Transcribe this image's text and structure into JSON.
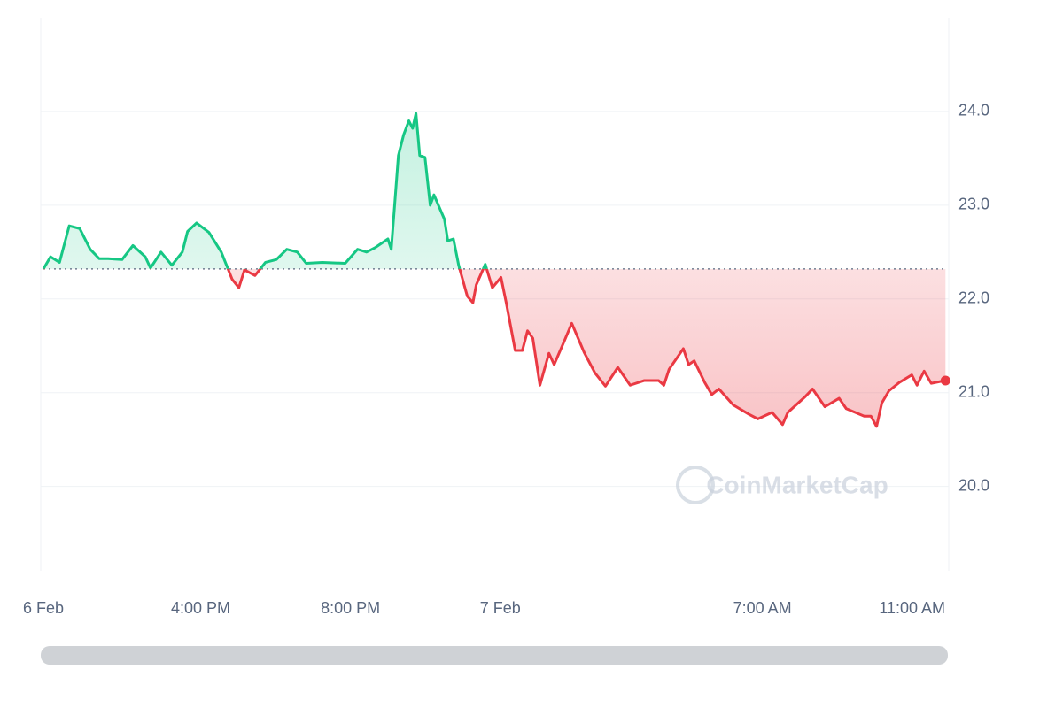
{
  "chart_data": {
    "type": "line",
    "watermark": "CoinMarketCap",
    "baseline": 22.32,
    "color_up": "#16c784",
    "color_down": "#ea3943",
    "x": [
      11.8,
      11.99,
      12.23,
      12.49,
      12.77,
      13.05,
      13.29,
      13.53,
      13.9,
      14.19,
      14.52,
      14.66,
      14.94,
      15.23,
      15.51,
      15.65,
      15.89,
      16.22,
      16.55,
      16.84,
      17.02,
      17.17,
      17.45,
      17.73,
      18.02,
      18.3,
      18.58,
      18.82,
      19.25,
      19.86,
      20.19,
      20.43,
      20.67,
      21.0,
      21.09,
      21.28,
      21.42,
      21.56,
      21.66,
      21.75,
      21.85,
      21.99,
      22.13,
      22.23,
      22.51,
      22.6,
      22.75,
      22.89,
      23.12,
      23.27,
      23.36,
      23.6,
      23.79,
      24.02,
      24.16,
      24.4,
      24.59,
      24.73,
      24.87,
      25.06,
      25.3,
      25.44,
      25.72,
      25.91,
      26.24,
      26.53,
      26.81,
      27.14,
      27.47,
      27.85,
      28.23,
      28.37,
      28.51,
      28.89,
      29.03,
      29.18,
      29.46,
      29.65,
      29.84,
      30.22,
      30.64,
      30.88,
      31.26,
      31.54,
      31.68,
      32.15,
      32.34,
      32.67,
      33.05,
      33.24,
      33.72,
      33.9,
      34.05,
      34.19,
      34.38,
      34.66,
      34.99,
      35.13,
      35.32,
      35.51,
      35.89
    ],
    "values": [
      22.32,
      22.45,
      22.39,
      22.78,
      22.75,
      22.53,
      22.43,
      22.43,
      22.42,
      22.57,
      22.45,
      22.33,
      22.5,
      22.36,
      22.5,
      22.72,
      22.81,
      22.71,
      22.5,
      22.21,
      22.12,
      22.31,
      22.25,
      22.39,
      22.42,
      22.53,
      22.5,
      22.38,
      22.39,
      22.38,
      22.53,
      22.5,
      22.55,
      22.64,
      22.53,
      23.53,
      23.75,
      23.9,
      23.82,
      23.98,
      23.53,
      23.51,
      23.0,
      23.11,
      22.85,
      22.62,
      22.64,
      22.36,
      22.03,
      21.96,
      22.15,
      22.37,
      22.12,
      22.23,
      21.96,
      21.45,
      21.45,
      21.66,
      21.58,
      21.08,
      21.42,
      21.3,
      21.56,
      21.74,
      21.43,
      21.21,
      21.07,
      21.27,
      21.08,
      21.13,
      21.13,
      21.08,
      21.25,
      21.47,
      21.3,
      21.34,
      21.11,
      20.98,
      21.04,
      20.87,
      20.77,
      20.72,
      20.79,
      20.66,
      20.79,
      20.96,
      21.04,
      20.85,
      20.94,
      20.83,
      20.75,
      20.75,
      20.64,
      20.89,
      21.02,
      21.11,
      21.19,
      21.08,
      21.23,
      21.1,
      21.13
    ],
    "xlim": [
      11.8,
      35.93
    ],
    "xticks": [
      {
        "value": 11.8,
        "label": "6 Feb"
      },
      {
        "value": 16,
        "label": "4:00 PM"
      },
      {
        "value": 20,
        "label": "8:00 PM"
      },
      {
        "value": 24,
        "label": "7 Feb"
      },
      {
        "value": 31,
        "label": "7:00 AM"
      },
      {
        "value": 35,
        "label": "11:00 AM"
      }
    ],
    "ylim": [
      19.1,
      25.0
    ],
    "yticks": [
      {
        "value": 20,
        "label": "20.0"
      },
      {
        "value": 21,
        "label": "21.0"
      },
      {
        "value": 22,
        "label": "22.0"
      },
      {
        "value": 23,
        "label": "23.0"
      },
      {
        "value": 24,
        "label": "24.0"
      }
    ],
    "grid": true
  }
}
